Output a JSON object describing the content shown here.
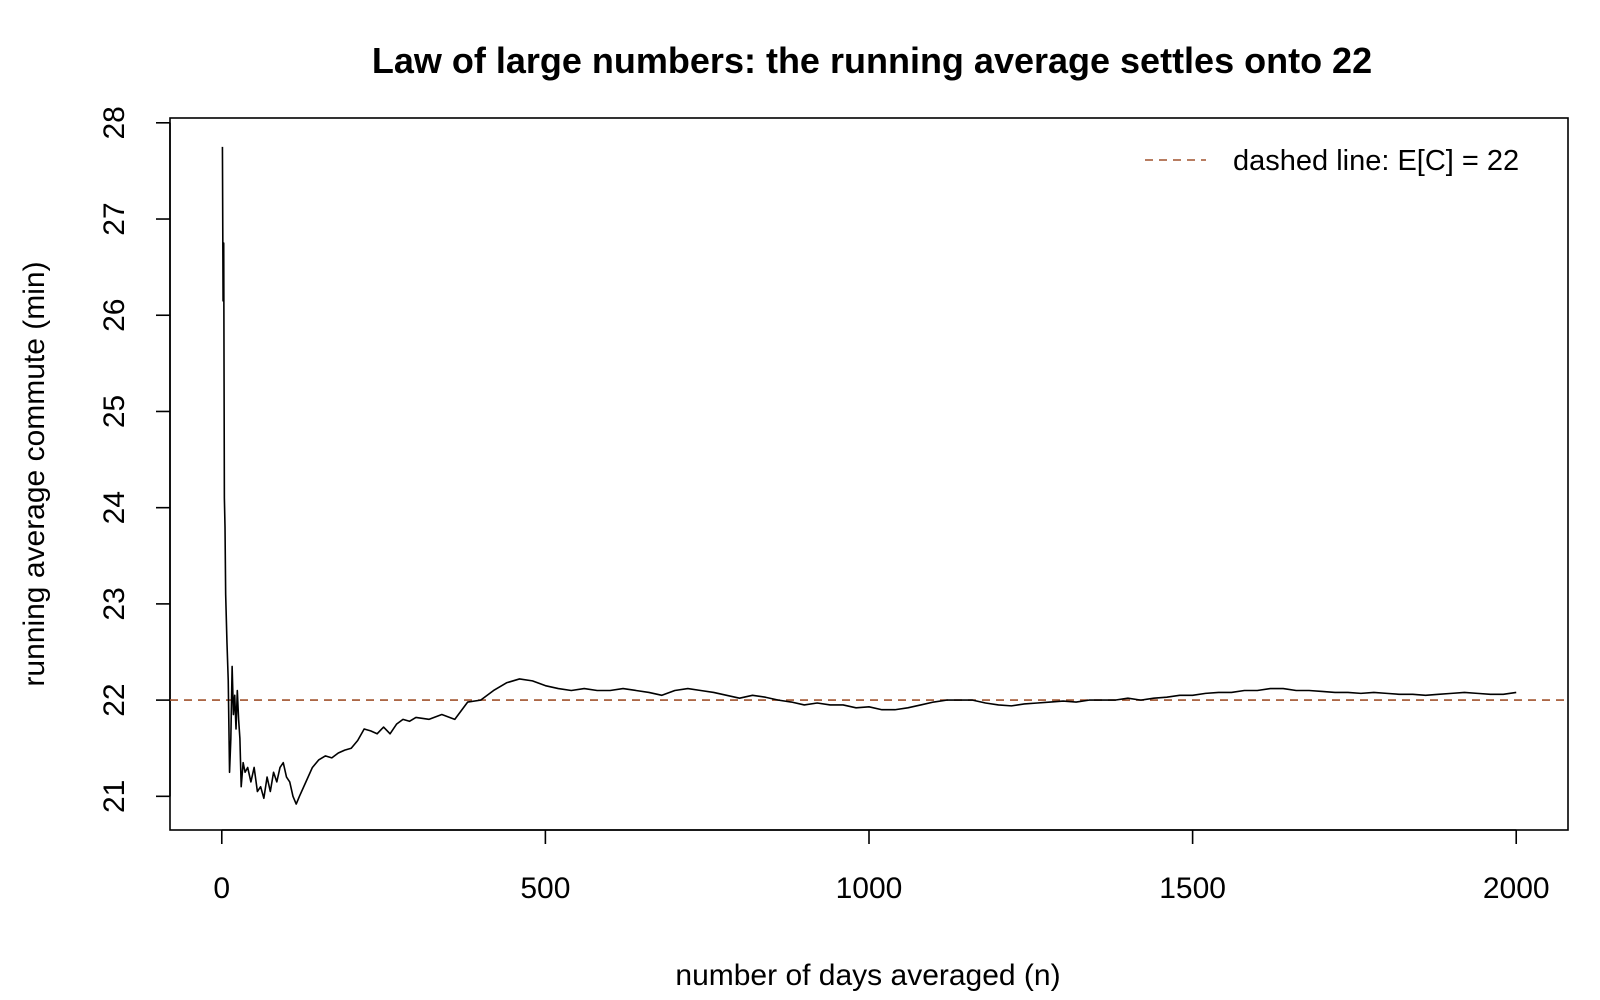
{
  "chart_data": {
    "type": "line",
    "title": "Law of large numbers: the running average settles onto 22",
    "xlabel": "number of days averaged (n)",
    "ylabel": "running average commute (min)",
    "xlim": [
      -80,
      2080
    ],
    "ylim": [
      20.65,
      28.05
    ],
    "x_ticks": [
      0,
      500,
      1000,
      1500,
      2000
    ],
    "x_tick_labels": [
      "0",
      "500",
      "1000",
      "1500",
      "2000"
    ],
    "y_ticks": [
      21,
      22,
      23,
      24,
      25,
      26,
      27,
      28
    ],
    "y_tick_labels": [
      "21",
      "22",
      "23",
      "24",
      "25",
      "26",
      "27",
      "28"
    ],
    "grid": false,
    "legend": {
      "position": "top-right",
      "entries": [
        {
          "label": "dashed line: E[C] = 22",
          "color": "#A0522D",
          "style": "dashed"
        }
      ]
    },
    "reference_line": {
      "y": 22,
      "color": "#A0522D",
      "style": "dashed"
    },
    "series": [
      {
        "color": "#000000",
        "x": [
          1,
          2,
          3,
          4,
          5,
          6,
          8,
          10,
          12,
          14,
          16,
          18,
          20,
          22,
          24,
          26,
          28,
          30,
          33,
          36,
          40,
          45,
          50,
          55,
          60,
          65,
          70,
          75,
          80,
          85,
          90,
          95,
          100,
          105,
          110,
          115,
          120,
          130,
          140,
          150,
          160,
          170,
          180,
          190,
          200,
          210,
          220,
          230,
          240,
          250,
          260,
          270,
          280,
          290,
          300,
          320,
          340,
          360,
          380,
          400,
          420,
          440,
          460,
          480,
          500,
          520,
          540,
          560,
          580,
          600,
          620,
          640,
          660,
          680,
          700,
          720,
          740,
          760,
          780,
          800,
          820,
          840,
          860,
          880,
          900,
          920,
          940,
          960,
          980,
          1000,
          1020,
          1040,
          1060,
          1080,
          1100,
          1120,
          1140,
          1160,
          1180,
          1200,
          1220,
          1240,
          1260,
          1280,
          1300,
          1320,
          1340,
          1360,
          1380,
          1400,
          1420,
          1440,
          1460,
          1480,
          1500,
          1520,
          1540,
          1560,
          1580,
          1600,
          1620,
          1640,
          1660,
          1680,
          1700,
          1720,
          1740,
          1760,
          1780,
          1800,
          1820,
          1840,
          1860,
          1880,
          1900,
          1920,
          1940,
          1960,
          1980,
          2000
        ],
        "values": [
          27.75,
          26.15,
          26.75,
          24.1,
          23.8,
          23.1,
          22.6,
          22.2,
          21.25,
          21.6,
          22.35,
          21.85,
          22.05,
          21.7,
          22.1,
          21.8,
          21.6,
          21.1,
          21.35,
          21.25,
          21.3,
          21.15,
          21.3,
          21.05,
          21.1,
          20.98,
          21.2,
          21.05,
          21.25,
          21.15,
          21.3,
          21.35,
          21.2,
          21.15,
          21.0,
          20.92,
          21.0,
          21.15,
          21.3,
          21.38,
          21.42,
          21.4,
          21.45,
          21.48,
          21.5,
          21.58,
          21.7,
          21.68,
          21.65,
          21.72,
          21.65,
          21.75,
          21.8,
          21.78,
          21.82,
          21.8,
          21.85,
          21.8,
          21.98,
          22.0,
          22.1,
          22.18,
          22.22,
          22.2,
          22.15,
          22.12,
          22.1,
          22.12,
          22.1,
          22.1,
          22.12,
          22.1,
          22.08,
          22.05,
          22.1,
          22.12,
          22.1,
          22.08,
          22.05,
          22.02,
          22.05,
          22.03,
          22.0,
          21.98,
          21.95,
          21.97,
          21.95,
          21.95,
          21.92,
          21.93,
          21.9,
          21.9,
          21.92,
          21.95,
          21.98,
          22.0,
          22.0,
          22.0,
          21.97,
          21.95,
          21.94,
          21.96,
          21.97,
          21.98,
          21.99,
          21.98,
          22.0,
          22.0,
          22.0,
          22.02,
          22.0,
          22.02,
          22.03,
          22.05,
          22.05,
          22.07,
          22.08,
          22.08,
          22.1,
          22.1,
          22.12,
          22.12,
          22.1,
          22.1,
          22.09,
          22.08,
          22.08,
          22.07,
          22.08,
          22.07,
          22.06,
          22.06,
          22.05,
          22.06,
          22.07,
          22.08,
          22.07,
          22.06,
          22.06,
          22.08
        ]
      }
    ]
  }
}
